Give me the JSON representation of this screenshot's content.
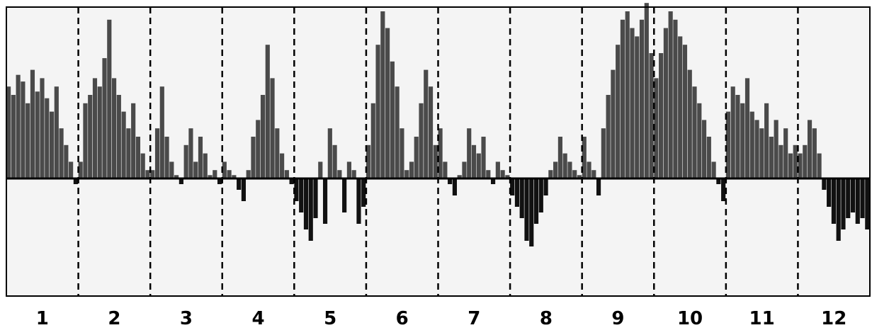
{
  "chart_data": {
    "type": "bar",
    "title": "",
    "xlabel": "",
    "ylabel": "",
    "ylim": [
      -1.0,
      1.0
    ],
    "grid": false,
    "legend": "none",
    "colors": {
      "positive_fill": "#4a4a4a",
      "negative_fill": "#111111",
      "axis": "#000000",
      "divider": "#000000",
      "frame": "#000000",
      "background": "#f4f4f4"
    },
    "categories": [
      "1",
      "2",
      "3",
      "4",
      "5",
      "6",
      "7",
      "8",
      "9",
      "10",
      "11",
      "12"
    ],
    "envelope": [
      {
        "category": "1",
        "values": [
          0.55,
          0.5,
          0.62,
          0.58,
          0.45,
          0.65,
          0.52,
          0.6,
          0.48,
          0.4,
          0.55,
          0.3,
          0.2,
          0.1,
          -0.05
        ]
      },
      {
        "category": "2",
        "values": [
          0.1,
          0.45,
          0.5,
          0.6,
          0.55,
          0.72,
          0.95,
          0.6,
          0.5,
          0.4,
          0.3,
          0.45,
          0.25,
          0.15,
          0.05
        ]
      },
      {
        "category": "3",
        "values": [
          0.05,
          0.3,
          0.55,
          0.25,
          0.1,
          0.02,
          -0.05,
          0.2,
          0.3,
          0.1,
          0.25,
          0.15,
          0.02,
          0.05,
          -0.05
        ]
      },
      {
        "category": "4",
        "values": [
          0.1,
          0.05,
          0.02,
          -0.1,
          -0.2,
          0.05,
          0.25,
          0.35,
          0.5,
          0.8,
          0.6,
          0.3,
          0.15,
          0.05,
          -0.05
        ]
      },
      {
        "category": "5",
        "values": [
          -0.2,
          -0.3,
          -0.45,
          -0.55,
          -0.35,
          0.1,
          -0.4,
          0.3,
          0.2,
          0.05,
          -0.3,
          0.1,
          0.05,
          -0.4,
          -0.25
        ]
      },
      {
        "category": "6",
        "values": [
          0.2,
          0.45,
          0.8,
          1.0,
          0.9,
          0.7,
          0.55,
          0.3,
          0.05,
          0.1,
          0.25,
          0.45,
          0.65,
          0.55,
          0.2
        ]
      },
      {
        "category": "7",
        "values": [
          0.3,
          0.1,
          -0.05,
          -0.15,
          0.02,
          0.1,
          0.3,
          0.2,
          0.15,
          0.25,
          0.05,
          -0.05,
          0.1,
          0.05,
          0.02
        ]
      },
      {
        "category": "8",
        "values": [
          -0.15,
          -0.25,
          -0.35,
          -0.55,
          -0.6,
          -0.4,
          -0.3,
          -0.15,
          0.05,
          0.1,
          0.25,
          0.15,
          0.1,
          0.05,
          0.02
        ]
      },
      {
        "category": "9",
        "values": [
          0.25,
          0.1,
          0.05,
          -0.15,
          0.3,
          0.5,
          0.65,
          0.8,
          0.95,
          1.0,
          0.9,
          0.85,
          0.95,
          1.05,
          0.75
        ]
      },
      {
        "category": "10",
        "values": [
          0.6,
          0.75,
          0.9,
          1.0,
          0.95,
          0.85,
          0.8,
          0.65,
          0.55,
          0.45,
          0.35,
          0.25,
          0.1,
          -0.05,
          -0.2
        ]
      },
      {
        "category": "11",
        "values": [
          0.4,
          0.55,
          0.5,
          0.45,
          0.6,
          0.4,
          0.35,
          0.3,
          0.45,
          0.25,
          0.35,
          0.2,
          0.3,
          0.15,
          0.2
        ]
      },
      {
        "category": "12",
        "values": [
          0.15,
          0.2,
          0.35,
          0.3,
          0.15,
          -0.1,
          -0.25,
          -0.4,
          -0.55,
          -0.45,
          -0.35,
          -0.3,
          -0.4,
          -0.35,
          -0.45
        ]
      }
    ]
  }
}
